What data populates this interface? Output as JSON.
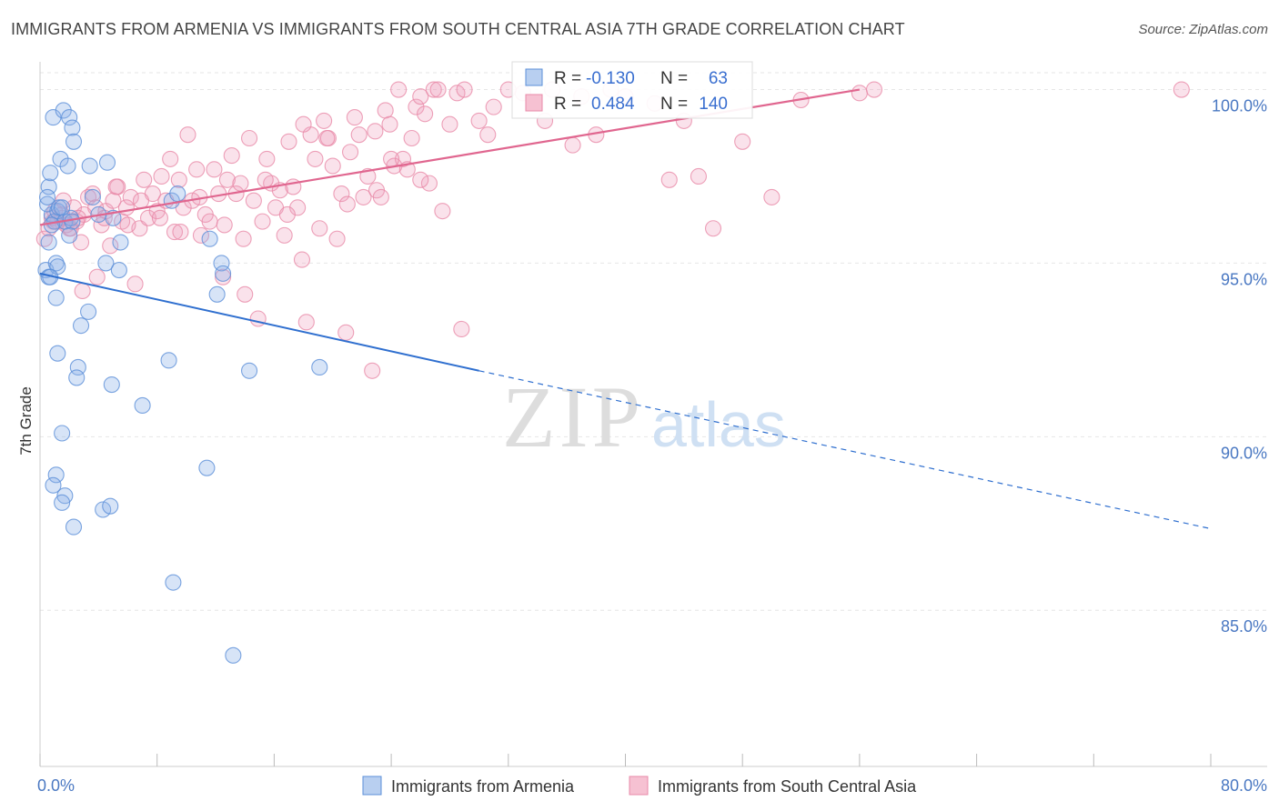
{
  "title": "IMMIGRANTS FROM ARMENIA VS IMMIGRANTS FROM SOUTH CENTRAL ASIA 7TH GRADE CORRELATION CHART",
  "source": "Source: ZipAtlas.com",
  "watermark": {
    "zip": "ZIP",
    "atlas": "atlas"
  },
  "colors": {
    "blue": "#5b8fd8",
    "blue_line": "#2f6fcf",
    "pink": "#e889a8",
    "pink_line": "#e0668f",
    "tick_text": "#4a78c2"
  },
  "chart_data": {
    "type": "scatter",
    "ylabel": "7th Grade",
    "xlim": [
      0,
      80
    ],
    "ylim": [
      80.5,
      100.8
    ],
    "x_tick_labels": {
      "min": "0.0%",
      "max": "80.0%"
    },
    "y_ticks": [
      {
        "v": 100,
        "label": "100.0%"
      },
      {
        "v": 95,
        "label": "95.0%"
      },
      {
        "v": 90,
        "label": "90.0%"
      },
      {
        "v": 85,
        "label": "85.0%"
      }
    ],
    "grid": true,
    "legend_position": "bottom",
    "stats": [
      {
        "r_label": "R =",
        "r": "-0.130",
        "n_label": "N =",
        "n": "63"
      },
      {
        "r_label": "R =",
        "r": "0.484",
        "n_label": "N =",
        "n": "140"
      }
    ],
    "series": [
      {
        "name": "Immigrants from Armenia",
        "color": "#5b8fd8",
        "trend": {
          "x0": 0,
          "y0": 94.7,
          "x1": 30,
          "y1": 91.9,
          "dash_to_x": 80,
          "dash_to_y": 87.35
        },
        "points": [
          [
            0.4,
            94.8
          ],
          [
            0.6,
            94.6
          ],
          [
            0.8,
            96.4
          ],
          [
            0.5,
            96.7
          ],
          [
            0.6,
            97.2
          ],
          [
            0.7,
            97.6
          ],
          [
            1.0,
            96.2
          ],
          [
            1.1,
            95.0
          ],
          [
            1.2,
            96.5
          ],
          [
            1.3,
            96.6
          ],
          [
            0.9,
            99.2
          ],
          [
            1.6,
            99.4
          ],
          [
            1.4,
            98.0
          ],
          [
            2.0,
            99.2
          ],
          [
            2.2,
            98.9
          ],
          [
            2.3,
            98.5
          ],
          [
            1.9,
            97.8
          ],
          [
            3.4,
            97.8
          ],
          [
            4.6,
            97.9
          ],
          [
            3.6,
            96.9
          ],
          [
            1.7,
            96.2
          ],
          [
            2.1,
            96.3
          ],
          [
            4.0,
            96.4
          ],
          [
            5.0,
            96.3
          ],
          [
            5.5,
            95.6
          ],
          [
            4.5,
            95.0
          ],
          [
            5.4,
            94.8
          ],
          [
            1.2,
            94.9
          ],
          [
            1.1,
            94.0
          ],
          [
            0.7,
            94.6
          ],
          [
            0.6,
            95.6
          ],
          [
            3.3,
            93.6
          ],
          [
            2.8,
            93.2
          ],
          [
            9.0,
            96.8
          ],
          [
            11.6,
            95.7
          ],
          [
            12.4,
            95.0
          ],
          [
            12.5,
            94.7
          ],
          [
            12.1,
            94.1
          ],
          [
            2.6,
            92.0
          ],
          [
            1.2,
            92.4
          ],
          [
            2.5,
            91.7
          ],
          [
            4.9,
            91.5
          ],
          [
            8.8,
            92.2
          ],
          [
            14.3,
            91.9
          ],
          [
            19.1,
            92.0
          ],
          [
            7.0,
            90.9
          ],
          [
            1.5,
            90.1
          ],
          [
            1.1,
            88.9
          ],
          [
            0.9,
            88.6
          ],
          [
            1.7,
            88.3
          ],
          [
            1.5,
            88.1
          ],
          [
            4.3,
            87.9
          ],
          [
            4.8,
            88.0
          ],
          [
            2.3,
            87.4
          ],
          [
            11.4,
            89.1
          ],
          [
            9.1,
            85.8
          ],
          [
            13.2,
            83.7
          ],
          [
            9.4,
            97.0
          ],
          [
            0.5,
            96.9
          ],
          [
            2.2,
            96.2
          ],
          [
            0.8,
            96.1
          ],
          [
            2.0,
            95.8
          ],
          [
            1.5,
            96.6
          ]
        ]
      },
      {
        "name": "Immigrants from South Central Asia",
        "color": "#e889a8",
        "trend": {
          "x0": 0,
          "y0": 96.1,
          "x1": 56,
          "y1": 100.0
        },
        "points": [
          [
            0.3,
            95.7
          ],
          [
            0.6,
            96.0
          ],
          [
            0.8,
            96.3
          ],
          [
            1.0,
            96.5
          ],
          [
            1.2,
            96.2
          ],
          [
            1.5,
            96.3
          ],
          [
            1.8,
            96.1
          ],
          [
            2.0,
            96.0
          ],
          [
            2.3,
            96.6
          ],
          [
            2.5,
            96.2
          ],
          [
            2.8,
            95.6
          ],
          [
            3.0,
            96.4
          ],
          [
            3.3,
            96.9
          ],
          [
            3.6,
            97.0
          ],
          [
            3.8,
            96.6
          ],
          [
            4.2,
            96.1
          ],
          [
            4.5,
            96.5
          ],
          [
            4.8,
            95.5
          ],
          [
            5.0,
            96.8
          ],
          [
            5.3,
            97.2
          ],
          [
            5.6,
            96.2
          ],
          [
            5.9,
            96.6
          ],
          [
            6.2,
            96.9
          ],
          [
            6.5,
            94.4
          ],
          [
            6.8,
            96.0
          ],
          [
            7.1,
            97.4
          ],
          [
            7.4,
            96.3
          ],
          [
            7.7,
            97.0
          ],
          [
            8.0,
            96.5
          ],
          [
            8.3,
            97.5
          ],
          [
            8.6,
            96.8
          ],
          [
            8.9,
            98.0
          ],
          [
            9.2,
            95.9
          ],
          [
            9.5,
            97.4
          ],
          [
            9.8,
            96.6
          ],
          [
            10.1,
            98.7
          ],
          [
            10.4,
            96.8
          ],
          [
            10.7,
            97.7
          ],
          [
            11.0,
            95.8
          ],
          [
            11.3,
            96.4
          ],
          [
            11.6,
            96.2
          ],
          [
            11.9,
            97.7
          ],
          [
            12.2,
            97.0
          ],
          [
            12.5,
            94.6
          ],
          [
            12.8,
            97.4
          ],
          [
            13.1,
            98.1
          ],
          [
            13.4,
            97.0
          ],
          [
            13.7,
            97.3
          ],
          [
            14.0,
            94.1
          ],
          [
            14.3,
            98.6
          ],
          [
            14.6,
            96.8
          ],
          [
            14.9,
            93.4
          ],
          [
            15.2,
            96.2
          ],
          [
            15.5,
            98.0
          ],
          [
            15.8,
            97.3
          ],
          [
            16.1,
            96.6
          ],
          [
            16.4,
            97.1
          ],
          [
            16.7,
            95.8
          ],
          [
            17.0,
            98.5
          ],
          [
            17.3,
            97.2
          ],
          [
            17.6,
            96.6
          ],
          [
            17.9,
            95.1
          ],
          [
            18.2,
            93.3
          ],
          [
            18.5,
            98.7
          ],
          [
            18.8,
            98.0
          ],
          [
            19.1,
            96.0
          ],
          [
            19.4,
            99.1
          ],
          [
            19.7,
            98.6
          ],
          [
            20.0,
            97.8
          ],
          [
            20.3,
            95.7
          ],
          [
            20.6,
            97.0
          ],
          [
            20.9,
            93.0
          ],
          [
            21.2,
            98.2
          ],
          [
            21.5,
            99.2
          ],
          [
            21.8,
            98.7
          ],
          [
            22.1,
            96.9
          ],
          [
            22.4,
            97.5
          ],
          [
            22.7,
            91.9
          ],
          [
            23.0,
            97.1
          ],
          [
            23.3,
            96.9
          ],
          [
            23.6,
            99.4
          ],
          [
            23.9,
            99.0
          ],
          [
            24.2,
            97.8
          ],
          [
            24.5,
            100.0
          ],
          [
            24.8,
            98.0
          ],
          [
            25.1,
            97.7
          ],
          [
            25.4,
            98.6
          ],
          [
            25.7,
            99.5
          ],
          [
            26.0,
            99.8
          ],
          [
            26.3,
            99.3
          ],
          [
            26.6,
            97.3
          ],
          [
            26.9,
            100.0
          ],
          [
            27.2,
            100.0
          ],
          [
            27.5,
            96.5
          ],
          [
            28.0,
            99.0
          ],
          [
            28.5,
            99.9
          ],
          [
            29.0,
            100.0
          ],
          [
            30.0,
            99.1
          ],
          [
            31.0,
            99.5
          ],
          [
            33.0,
            99.9
          ],
          [
            35.0,
            100.0
          ],
          [
            37.0,
            99.8
          ],
          [
            38.0,
            98.7
          ],
          [
            40.0,
            99.8
          ],
          [
            42.0,
            99.6
          ],
          [
            43.0,
            97.4
          ],
          [
            45.0,
            97.5
          ],
          [
            46.0,
            96.0
          ],
          [
            48.0,
            98.5
          ],
          [
            50.0,
            96.9
          ],
          [
            52.0,
            99.7
          ],
          [
            56.0,
            99.9
          ],
          [
            57.0,
            100.0
          ],
          [
            78.0,
            100.0
          ],
          [
            1.5,
            96.4
          ],
          [
            2.1,
            96.0
          ],
          [
            2.9,
            94.2
          ],
          [
            3.9,
            94.6
          ],
          [
            0.9,
            96.2
          ],
          [
            1.6,
            96.8
          ],
          [
            2.6,
            96.3
          ],
          [
            4.4,
            96.3
          ],
          [
            5.2,
            97.2
          ],
          [
            6.0,
            96.1
          ],
          [
            6.9,
            96.8
          ],
          [
            8.2,
            96.3
          ],
          [
            9.6,
            95.9
          ],
          [
            10.9,
            96.9
          ],
          [
            12.6,
            96.1
          ],
          [
            13.9,
            95.7
          ],
          [
            15.4,
            97.4
          ],
          [
            16.9,
            96.4
          ],
          [
            18.0,
            99.0
          ],
          [
            19.6,
            98.6
          ],
          [
            21.0,
            96.7
          ],
          [
            22.9,
            98.8
          ],
          [
            24.0,
            98.0
          ],
          [
            26.0,
            97.4
          ],
          [
            28.8,
            93.1
          ],
          [
            30.6,
            98.7
          ],
          [
            32.0,
            100.0
          ],
          [
            34.5,
            99.1
          ],
          [
            36.4,
            98.4
          ],
          [
            39.0,
            100.0
          ],
          [
            44.0,
            99.1
          ]
        ]
      }
    ]
  }
}
